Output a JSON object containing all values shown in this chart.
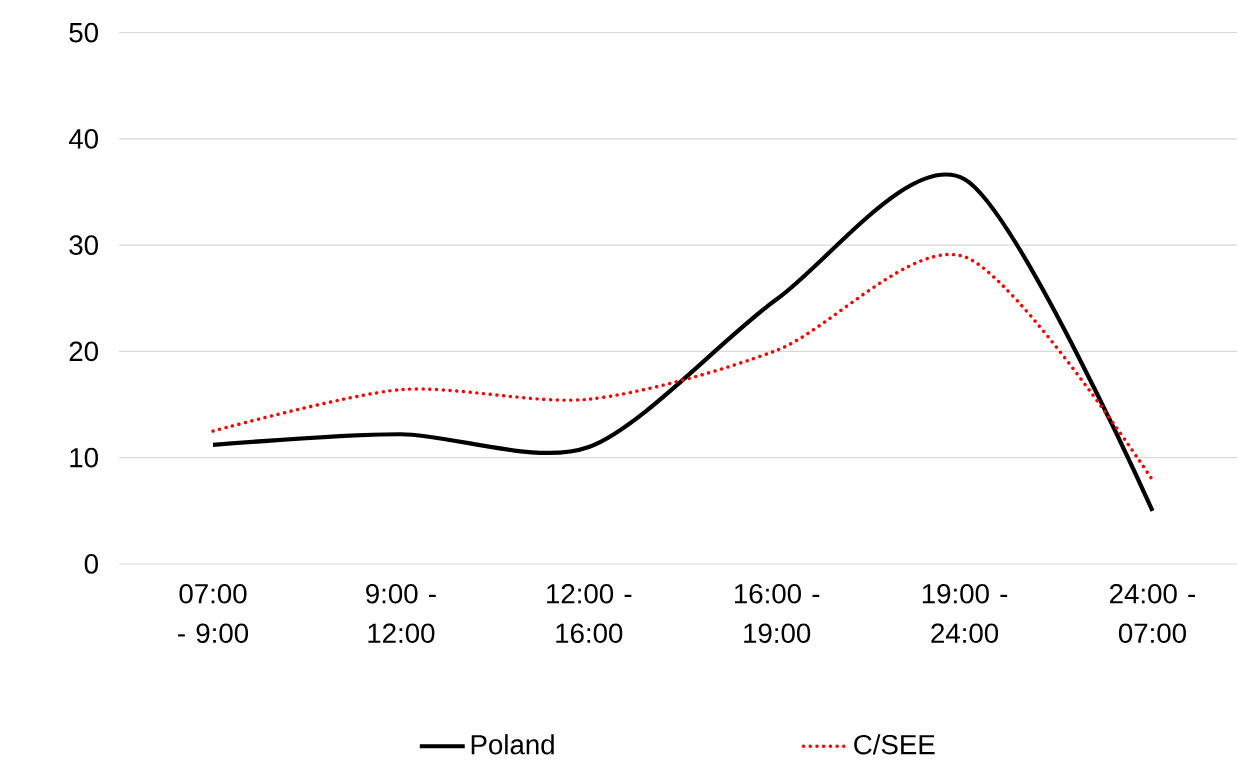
{
  "chart_data": {
    "type": "line",
    "categories": [
      "07:00 - 9:00",
      "9:00 - 12:00",
      "12:00 - 16:00",
      "16:00 - 19:00",
      "19:00 - 24:00",
      "24:00 - 07:00"
    ],
    "series": [
      {
        "name": "Poland",
        "color": "#000000",
        "line_style": "solid",
        "values": [
          11.2,
          12.2,
          11.0,
          24.9,
          36.2,
          5.0
        ]
      },
      {
        "name": "C/SEE",
        "color": "#ff0000",
        "line_style": "dotted",
        "values": [
          12.5,
          16.4,
          15.5,
          20.1,
          28.9,
          7.9
        ]
      }
    ],
    "ylim": [
      0,
      50
    ],
    "yticks": [
      0,
      10,
      20,
      30,
      40,
      50
    ],
    "grid": "y",
    "legend": "bottom",
    "marker": "none"
  }
}
